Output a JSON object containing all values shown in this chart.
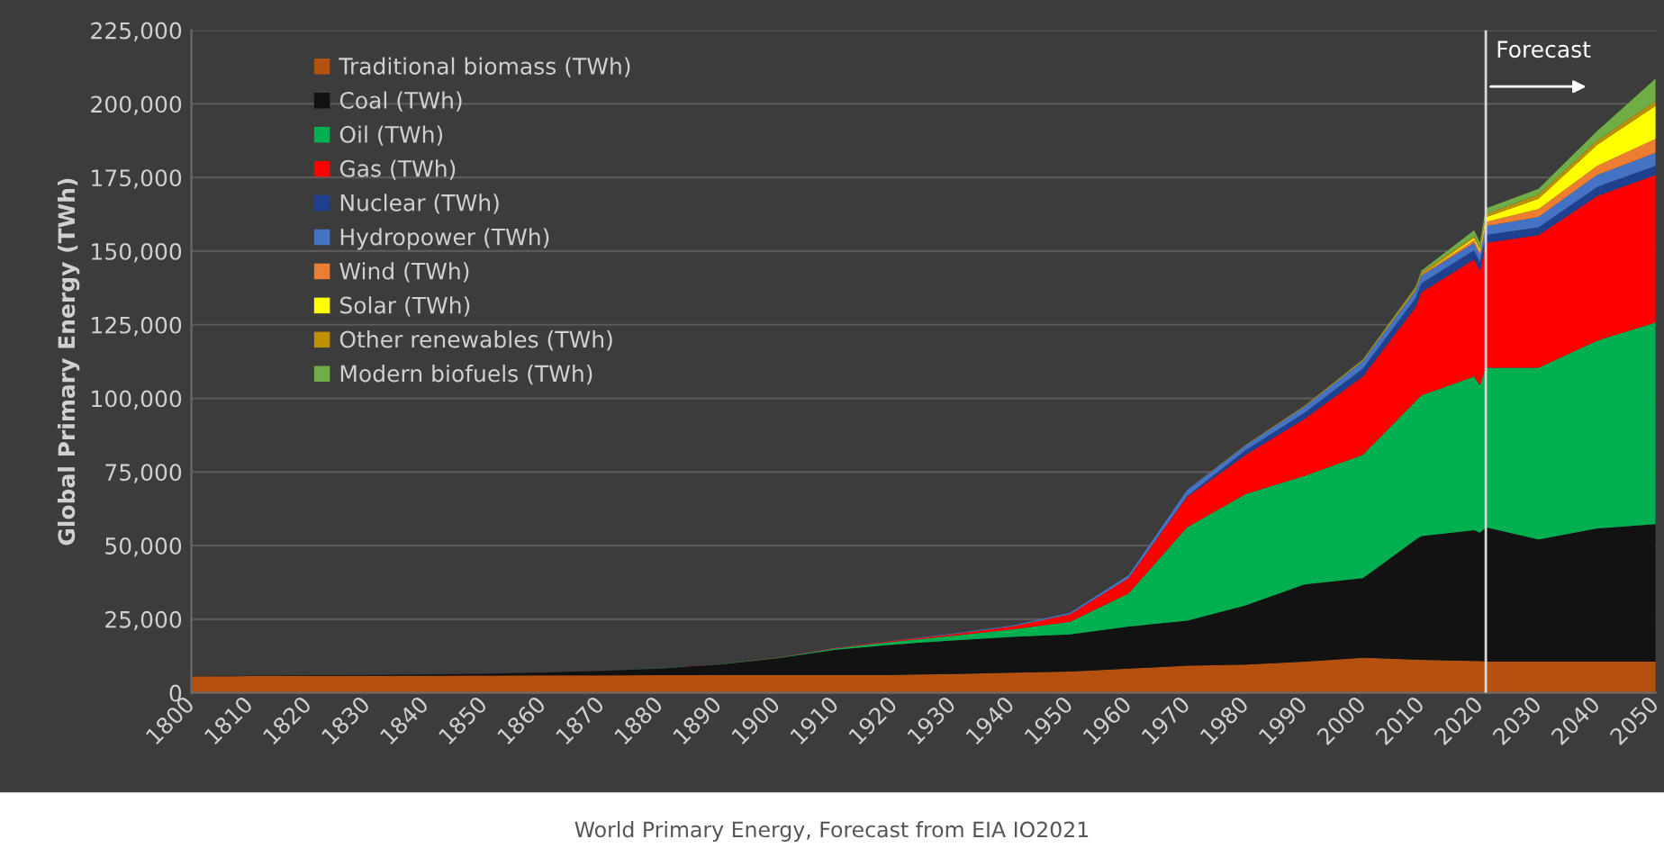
{
  "chart_data": {
    "type": "area",
    "stacked": true,
    "ylabel": "Global Primary Energy (TWh)",
    "x": [
      1800,
      1810,
      1820,
      1830,
      1840,
      1850,
      1860,
      1870,
      1880,
      1890,
      1900,
      1910,
      1920,
      1930,
      1940,
      1950,
      1960,
      1970,
      1980,
      1990,
      2000,
      2009,
      2010,
      2019,
      2020,
      2021,
      2030,
      2040,
      2050
    ],
    "series": [
      {
        "name": "Traditional biomass (TWh)",
        "color": "#b5500f",
        "values": [
          5600,
          5650,
          5700,
          5750,
          5800,
          5850,
          5900,
          5950,
          6000,
          6050,
          6100,
          6100,
          6100,
          6400,
          6800,
          7200,
          8200,
          9200,
          9600,
          10600,
          11900,
          11300,
          11200,
          10800,
          10800,
          10600,
          10600,
          10600,
          10600
        ]
      },
      {
        "name": "Coal (TWh)",
        "color": "#121212",
        "values": [
          100,
          150,
          200,
          300,
          450,
          600,
          1000,
          1500,
          2300,
          3500,
          5600,
          8500,
          10300,
          11400,
          12200,
          12600,
          14300,
          15300,
          20100,
          26200,
          27000,
          40700,
          42000,
          44400,
          43600,
          45600,
          41500,
          45200,
          46700
        ]
      },
      {
        "name": "Oil (TWh)",
        "color": "#00b050",
        "values": [
          0,
          0,
          0,
          0,
          0,
          0,
          0,
          10,
          40,
          100,
          200,
          500,
          1000,
          1600,
          2500,
          4300,
          11200,
          31700,
          37800,
          36800,
          41900,
          47000,
          47800,
          52200,
          50000,
          54200,
          58300,
          63800,
          68500
        ]
      },
      {
        "name": "Gas (TWh)",
        "color": "#ff0000",
        "values": [
          0,
          0,
          0,
          0,
          0,
          0,
          0,
          0,
          10,
          30,
          60,
          150,
          250,
          500,
          1000,
          2500,
          5200,
          10300,
          13300,
          19400,
          26600,
          32000,
          35000,
          39800,
          38900,
          42400,
          45000,
          49100,
          50100
        ]
      },
      {
        "name": "Nuclear (TWh)",
        "color": "#1f3f8f",
        "values": [
          0,
          0,
          0,
          0,
          0,
          0,
          0,
          0,
          0,
          0,
          0,
          0,
          0,
          0,
          0,
          0,
          0,
          300,
          1600,
          2000,
          2700,
          3000,
          3100,
          3100,
          2900,
          2700,
          2700,
          3100,
          3100
        ]
      },
      {
        "name": "Hydropower (TWh)",
        "color": "#4472c4",
        "values": [
          0,
          0,
          0,
          0,
          0,
          0,
          0,
          0,
          0,
          0,
          0,
          50,
          100,
          200,
          300,
          600,
          1000,
          2100,
          1600,
          2100,
          2500,
          2500,
          2600,
          2500,
          2500,
          3000,
          3500,
          4100,
          4400
        ]
      },
      {
        "name": "Wind (TWh)",
        "color": "#ed7d31",
        "values": [
          0,
          0,
          0,
          0,
          0,
          0,
          0,
          0,
          0,
          0,
          0,
          0,
          0,
          0,
          0,
          0,
          0,
          0,
          0,
          0,
          0,
          200,
          300,
          1000,
          1100,
          1400,
          2700,
          3100,
          4700
        ]
      },
      {
        "name": "Solar (TWh)",
        "color": "#ffff00",
        "values": [
          0,
          0,
          0,
          0,
          0,
          0,
          0,
          0,
          0,
          0,
          0,
          0,
          0,
          0,
          0,
          0,
          0,
          0,
          0,
          0,
          0,
          30,
          50,
          700,
          800,
          1600,
          3500,
          7100,
          11300
        ]
      },
      {
        "name": "Other renewables (TWh)",
        "color": "#bf9000",
        "values": [
          0,
          0,
          0,
          0,
          0,
          0,
          0,
          0,
          0,
          0,
          0,
          0,
          0,
          0,
          0,
          0,
          0,
          0,
          200,
          300,
          500,
          700,
          700,
          600,
          600,
          1000,
          1400,
          1400,
          1600
        ]
      },
      {
        "name": "Modern biofuels (TWh)",
        "color": "#70ad47",
        "values": [
          0,
          0,
          0,
          0,
          0,
          0,
          0,
          0,
          0,
          0,
          0,
          0,
          0,
          0,
          0,
          0,
          0,
          0,
          0,
          0,
          100,
          500,
          600,
          2000,
          1800,
          2000,
          2000,
          3300,
          7600
        ]
      }
    ],
    "xlim": [
      1800,
      2050
    ],
    "xticks": [
      1800,
      1810,
      1820,
      1830,
      1840,
      1850,
      1860,
      1870,
      1880,
      1890,
      1900,
      1910,
      1920,
      1930,
      1940,
      1950,
      1960,
      1970,
      1980,
      1990,
      2000,
      2010,
      2020,
      2030,
      2040,
      2050
    ],
    "ylim": [
      0,
      225000
    ],
    "yticks": [
      0,
      {
        "value": 25000,
        "label": "25,000"
      },
      {
        "value": 50000,
        "label": "50,000"
      },
      {
        "value": 75000,
        "label": "75,000"
      },
      {
        "value": 100000,
        "label": "100,000"
      },
      {
        "value": 125000,
        "label": "125,000"
      },
      {
        "value": 150000,
        "label": "150,000"
      },
      {
        "value": 175000,
        "label": "175,000"
      },
      {
        "value": 200000,
        "label": "200,000"
      },
      {
        "value": 225000,
        "label": "225,000"
      }
    ],
    "grid": "y",
    "legend": "top left",
    "ref_lines": [
      {
        "axis": "x",
        "value": 2021,
        "label": "Forecast",
        "color": "#d9d9d9"
      }
    ],
    "annotations": [
      "World Primary Energy, Forecast from EIA IO2021"
    ]
  }
}
